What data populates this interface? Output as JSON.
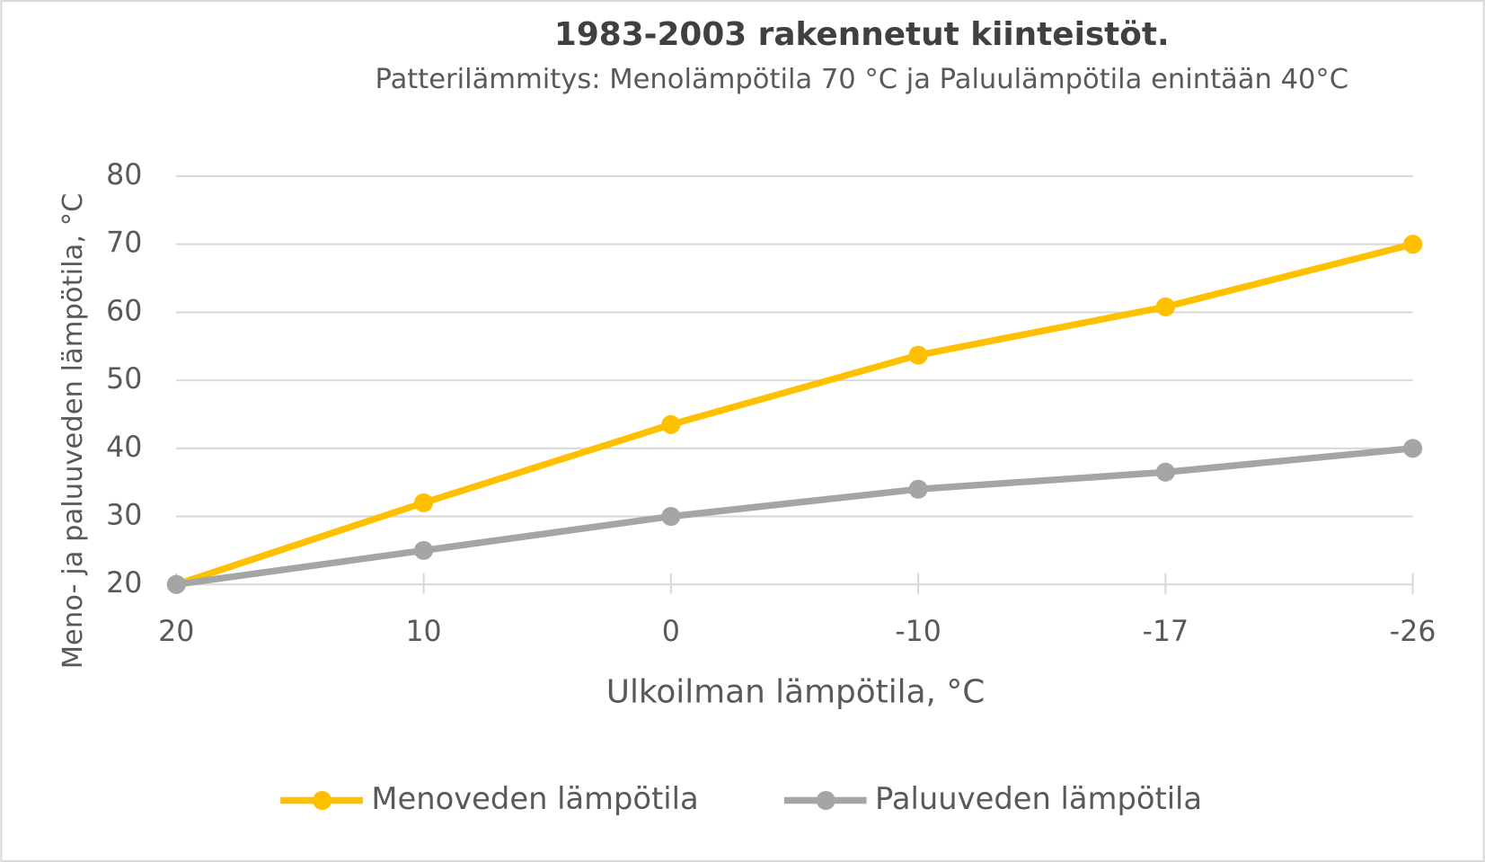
{
  "chart_data": {
    "type": "line",
    "title": "1983-2003 rakennetut kiinteistöt.",
    "subtitle": "Patterilämmitys:  Menolämpötila 70 °C ja Paluulämpötila enintään 40°C",
    "x_label": "Ulkoilman lämpötila, °C",
    "y_label": "Meno- ja paluuveden lämpötila, °C",
    "categories": [
      "20",
      "10",
      "0",
      "-10",
      "-17",
      "-26"
    ],
    "series": [
      {
        "name": "Menoveden lämpötila",
        "color": "#ffc000",
        "values": [
          20,
          32,
          43.5,
          53.7,
          60.8,
          70
        ]
      },
      {
        "name": "Paluuveden lämpötila",
        "color": "#a5a5a5",
        "values": [
          20,
          25,
          30,
          34,
          36.5,
          40
        ]
      }
    ],
    "ylim": [
      20,
      80
    ],
    "yticks": [
      20,
      30,
      40,
      50,
      60,
      70,
      80
    ],
    "grid": true,
    "legend": "bottom"
  }
}
